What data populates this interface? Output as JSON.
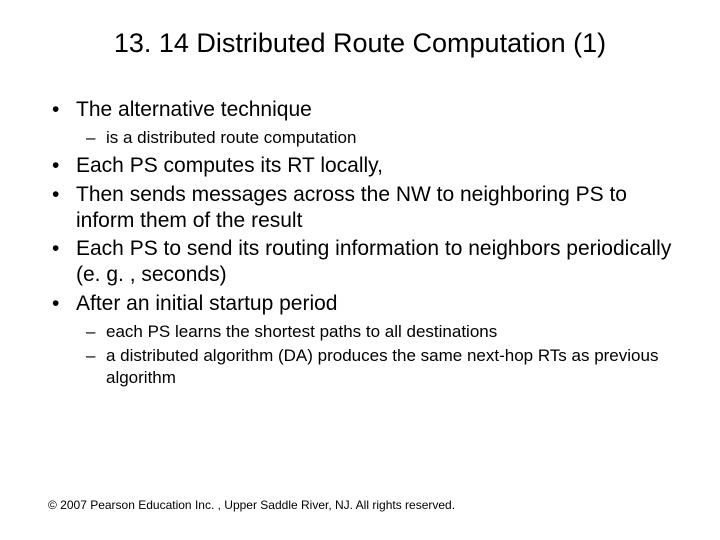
{
  "title": "13. 14 Distributed Route Computation (1)",
  "bullets": [
    {
      "text": "The alternative technique",
      "children": [
        "is a distributed route computation"
      ]
    },
    {
      "text": "Each PS computes its RT locally,",
      "children": []
    },
    {
      "text": "Then sends messages across the NW  to neighboring PS to inform them of the result",
      "children": []
    },
    {
      "text": "Each PS to send its routing information to neighbors periodically (e. g. , seconds)",
      "children": []
    },
    {
      "text": "After an initial startup period",
      "children": [
        "each PS learns the shortest paths to all destinations",
        "a distributed algorithm (DA) produces the same next-hop RTs as previous algorithm"
      ]
    }
  ],
  "footer": "© 2007 Pearson Education Inc. , Upper Saddle River, NJ. All rights reserved.",
  "colors": {
    "background": "#ffffff",
    "text": "#000000"
  },
  "fonts": {
    "title_size": 27,
    "level1_size": 21,
    "level2_size": 17,
    "footer_size": 12
  }
}
